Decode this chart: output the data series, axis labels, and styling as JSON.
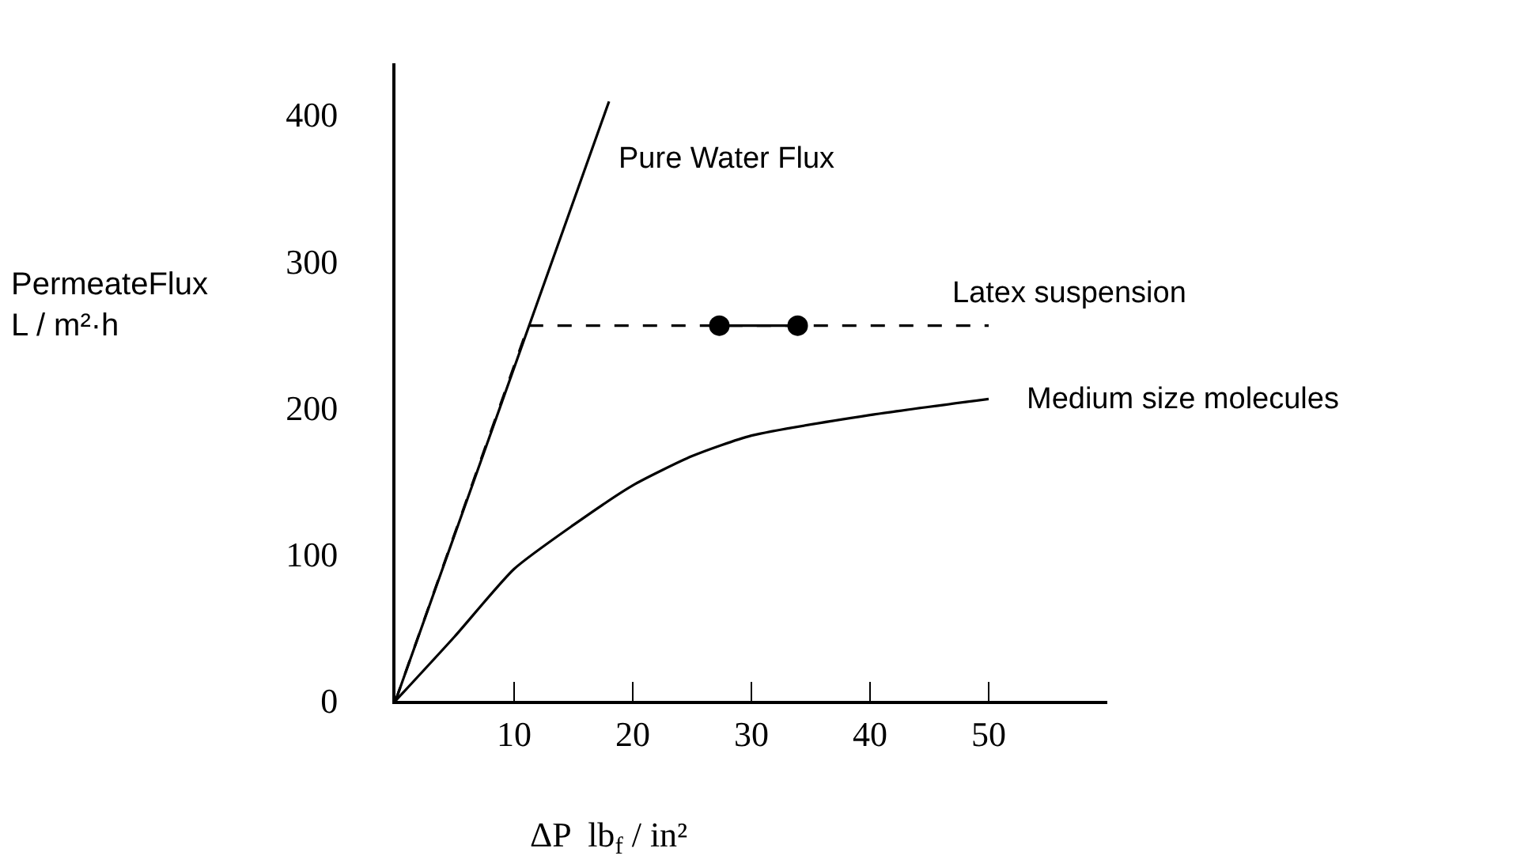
{
  "chart_data": {
    "type": "line",
    "xlabel": "ΔP  lb$_{f}$ / in²",
    "ylabel": "PermeateFlux\nL / m²·h",
    "xlim": [
      0,
      60
    ],
    "ylim": [
      0,
      435
    ],
    "xticks": [
      10,
      20,
      30,
      40,
      50
    ],
    "yticks": [
      0,
      100,
      200,
      300,
      400
    ],
    "legend": false,
    "line_style": "solid",
    "marker": "none",
    "series": [
      {
        "name": "Pure Water Flux",
        "color": "#000000",
        "x": [
          0,
          18
        ],
        "values": [
          0,
          409
        ]
      },
      {
        "name": "Latex suspension",
        "color": "#000000",
        "line_style": "dashed",
        "x": [
          0,
          11.2,
          50
        ],
        "values": [
          0,
          256,
          256
        ]
      },
      {
        "color": "#000000",
        "marker": "circle",
        "x": [
          27.3,
          33.9
        ],
        "values": [
          256,
          256
        ]
      },
      {
        "name": "Medium size molecules",
        "color": "#000000",
        "x": [
          0,
          5,
          10,
          15,
          20,
          25,
          30,
          40,
          50
        ],
        "values": [
          0,
          44,
          90,
          120,
          147,
          167,
          181,
          195,
          206
        ]
      }
    ]
  }
}
